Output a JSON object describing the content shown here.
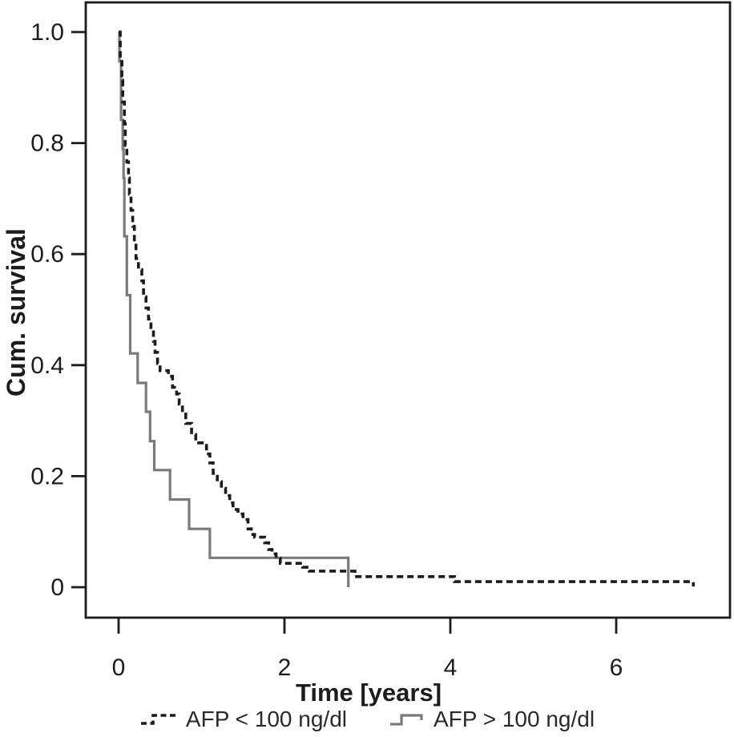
{
  "page": {
    "background": "#ffffff"
  },
  "chart_data": {
    "type": "line",
    "subtype": "kaplan_meier_step",
    "title": "",
    "xlabel": "Time [years]",
    "ylabel": "Cum. survival",
    "grid": false,
    "legend_position": "bottom",
    "xlim": [
      -0.4,
      7.36
    ],
    "ylim": [
      -0.055,
      1.053
    ],
    "x_ticks": [
      0,
      2,
      4,
      6
    ],
    "x_tick_labels": [
      "0",
      "2",
      "4",
      "6"
    ],
    "y_ticks": [
      0,
      0.2,
      0.4,
      0.6,
      0.8,
      1.0
    ],
    "y_tick_labels": [
      "0",
      "0.2",
      "0.4",
      "0.6",
      "0.8",
      "1.0"
    ],
    "axis_color": "#1c1c1c",
    "series": [
      {
        "name": "AFP > 100 ng/dl",
        "line_style": "solid",
        "color": "#7a7a7a",
        "stroke_width": 3.2,
        "start": [
          0,
          1.0
        ],
        "steps": [
          [
            0.01,
            0.947
          ],
          [
            0.03,
            0.842
          ],
          [
            0.05,
            0.789
          ],
          [
            0.06,
            0.737
          ],
          [
            0.07,
            0.632
          ],
          [
            0.1,
            0.526
          ],
          [
            0.14,
            0.421
          ],
          [
            0.23,
            0.368
          ],
          [
            0.33,
            0.316
          ],
          [
            0.38,
            0.263
          ],
          [
            0.43,
            0.211
          ],
          [
            0.62,
            0.158
          ],
          [
            0.85,
            0.105
          ],
          [
            1.1,
            0.053
          ],
          [
            2.77,
            0.0
          ]
        ],
        "end_time": 2.77,
        "end_tick": false
      },
      {
        "name": "AFP < 100 ng/dl",
        "line_style": "dashed",
        "color": "#1c1c1c",
        "stroke_width": 3.6,
        "start": [
          0,
          1.0
        ],
        "steps": [
          [
            0.02,
            0.952
          ],
          [
            0.04,
            0.913
          ],
          [
            0.05,
            0.874
          ],
          [
            0.07,
            0.835
          ],
          [
            0.08,
            0.796
          ],
          [
            0.1,
            0.766
          ],
          [
            0.12,
            0.737
          ],
          [
            0.13,
            0.708
          ],
          [
            0.15,
            0.679
          ],
          [
            0.17,
            0.65
          ],
          [
            0.19,
            0.621
          ],
          [
            0.21,
            0.592
          ],
          [
            0.24,
            0.572
          ],
          [
            0.28,
            0.552
          ],
          [
            0.3,
            0.523
          ],
          [
            0.33,
            0.503
          ],
          [
            0.36,
            0.483
          ],
          [
            0.39,
            0.463
          ],
          [
            0.42,
            0.443
          ],
          [
            0.44,
            0.423
          ],
          [
            0.47,
            0.403
          ],
          [
            0.5,
            0.39
          ],
          [
            0.6,
            0.38
          ],
          [
            0.65,
            0.36
          ],
          [
            0.7,
            0.348
          ],
          [
            0.73,
            0.33
          ],
          [
            0.77,
            0.312
          ],
          [
            0.81,
            0.295
          ],
          [
            0.88,
            0.275
          ],
          [
            0.93,
            0.26
          ],
          [
            1.06,
            0.24
          ],
          [
            1.1,
            0.224
          ],
          [
            1.14,
            0.205
          ],
          [
            1.19,
            0.19
          ],
          [
            1.24,
            0.178
          ],
          [
            1.29,
            0.165
          ],
          [
            1.34,
            0.152
          ],
          [
            1.38,
            0.14
          ],
          [
            1.44,
            0.132
          ],
          [
            1.5,
            0.122
          ],
          [
            1.56,
            0.105
          ],
          [
            1.6,
            0.095
          ],
          [
            1.64,
            0.09
          ],
          [
            1.76,
            0.08
          ],
          [
            1.81,
            0.068
          ],
          [
            1.85,
            0.06
          ],
          [
            1.9,
            0.052
          ],
          [
            1.95,
            0.043
          ],
          [
            2.22,
            0.036
          ],
          [
            2.3,
            0.029
          ],
          [
            2.85,
            0.019
          ],
          [
            4.05,
            0.01
          ]
        ],
        "end_time": 6.93,
        "end_tick": true
      }
    ]
  },
  "legend": {
    "items": [
      {
        "label": "AFP < 100 ng/dl",
        "icon": "dashed-step-line-icon",
        "series_index": 1
      },
      {
        "label": "AFP > 100 ng/dl",
        "icon": "solid-step-line-icon",
        "series_index": 0
      }
    ]
  }
}
